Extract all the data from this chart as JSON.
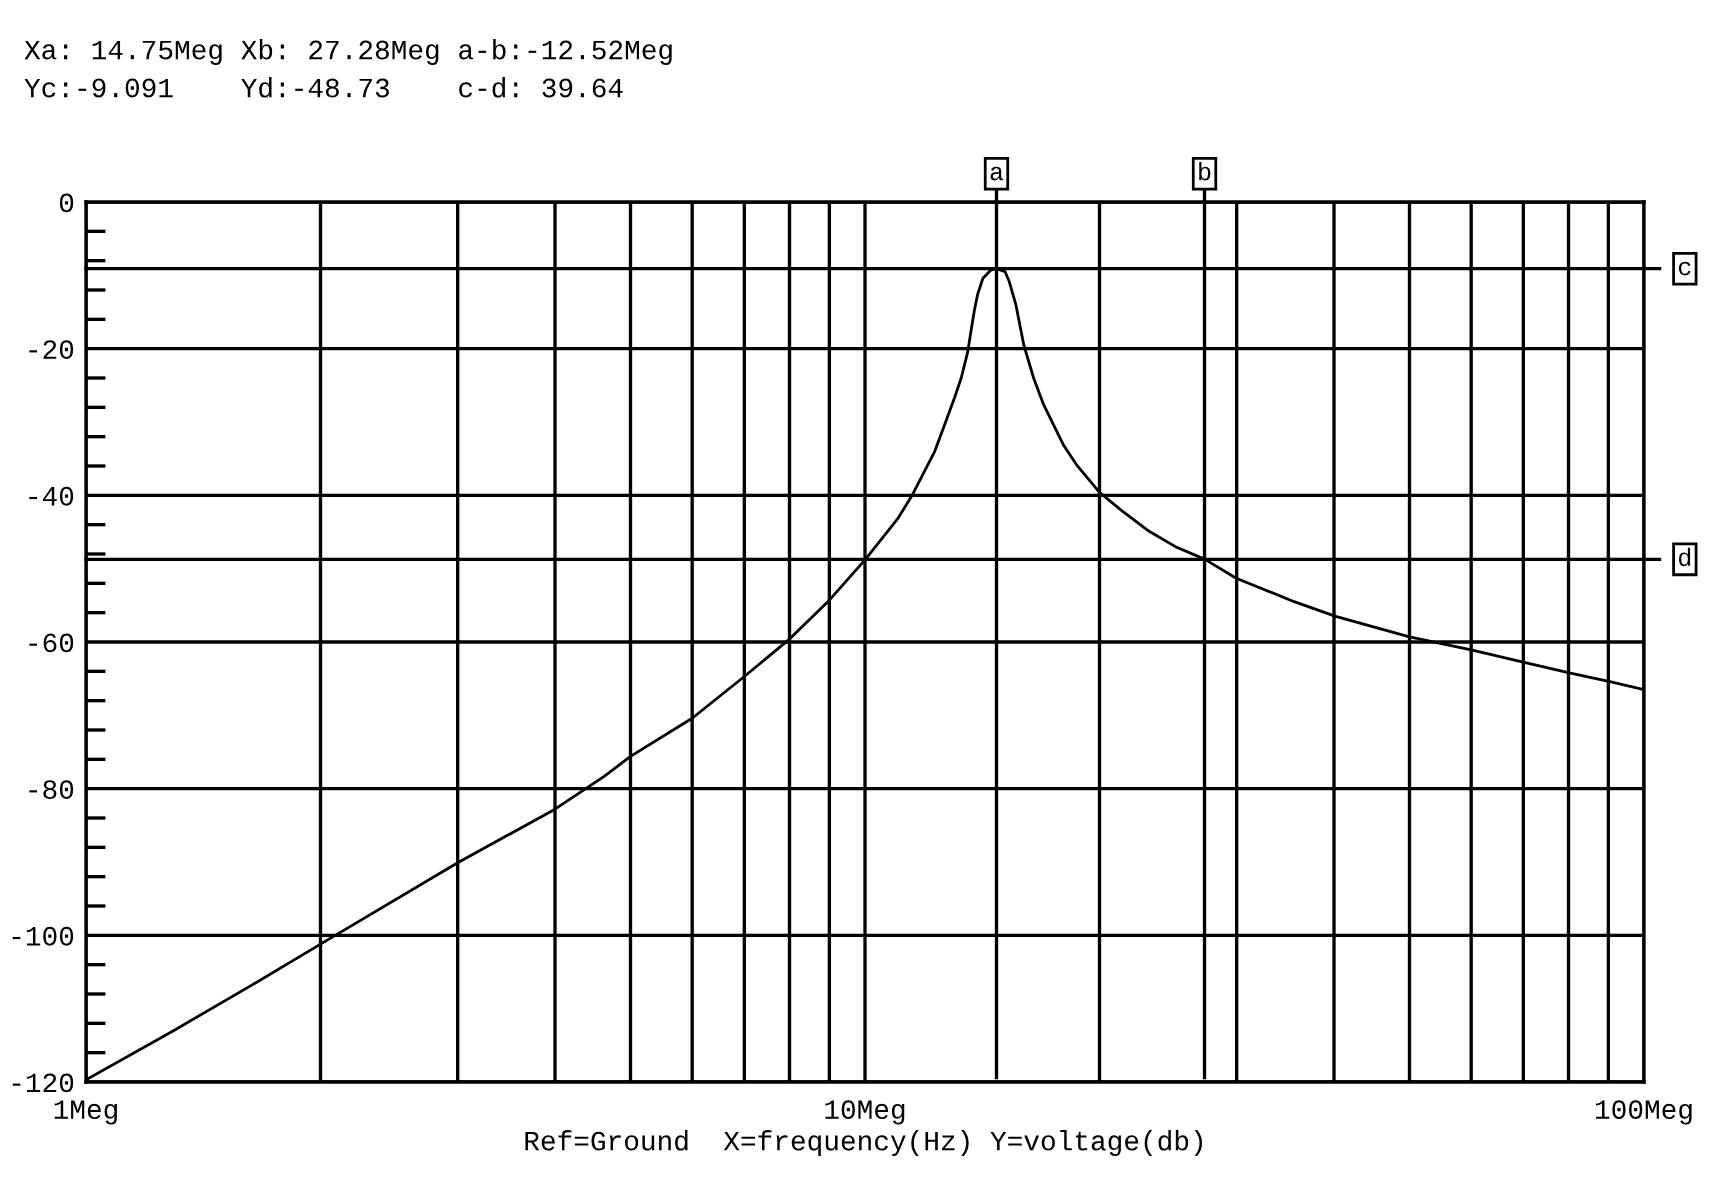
{
  "chart_data": {
    "type": "line",
    "xlabel": "Ref=Ground  X=frequency(Hz) Y=voltage(db)",
    "annotations": [
      "Xa: 14.75Meg Xb: 27.28Meg a-b:-12.52Meg",
      "Yc:-9.091    Yd:-48.73    c-d: 39.64"
    ],
    "x": [
      1,
      1.295,
      1.62,
      2,
      3,
      4,
      4.63,
      5,
      6,
      7,
      8,
      9,
      10,
      11.03,
      11.48,
      12.29,
      12.65,
      13.03,
      13.29,
      13.55,
      13.68,
      13.81,
      13.95,
      14.17,
      14.5,
      14.75,
      15.13,
      15.31,
      15.62,
      15.99,
      16.46,
      16.95,
      17.46,
      17.97,
      18.68,
      20,
      21.42,
      23.16,
      25.03,
      27.28,
      29.96,
      35.56,
      40.2,
      50,
      60.2,
      70.4,
      80.2,
      90.4,
      100
    ],
    "series": [
      {
        "color": "#000000",
        "values": [
          -119.7,
          -113.0,
          -107.0,
          -101.2,
          -90.1,
          -82.8,
          -78.3,
          -75.6,
          -70.4,
          -64.7,
          -59.6,
          -54.3,
          -48.8,
          -43.1,
          -40.1,
          -34.0,
          -30.4,
          -26.7,
          -24.0,
          -20.4,
          -17.6,
          -14.9,
          -12.6,
          -10.4,
          -9.3,
          -9.1,
          -9.5,
          -10.8,
          -14.0,
          -19.5,
          -24.0,
          -27.6,
          -30.4,
          -33.1,
          -35.8,
          -39.6,
          -42.2,
          -44.9,
          -47.0,
          -48.7,
          -51.3,
          -54.5,
          -56.5,
          -59.3,
          -61.1,
          -62.8,
          -64.2,
          -65.4,
          -66.5
        ]
      }
    ],
    "log": "x",
    "xlim": [
      1,
      100
    ],
    "xticks": [
      {
        "value": 1,
        "label": "1Meg"
      },
      {
        "value": 2,
        "label": null
      },
      {
        "value": 3,
        "label": null
      },
      {
        "value": 4,
        "label": null
      },
      {
        "value": 5,
        "label": null
      },
      {
        "value": 6,
        "label": null
      },
      {
        "value": 7,
        "label": null
      },
      {
        "value": 8,
        "label": null
      },
      {
        "value": 9,
        "label": null
      },
      {
        "value": 10,
        "label": "10Meg"
      },
      {
        "value": 20,
        "label": null
      },
      {
        "value": 30,
        "label": null
      },
      {
        "value": 40,
        "label": null
      },
      {
        "value": 50,
        "label": null
      },
      {
        "value": 60,
        "label": null
      },
      {
        "value": 70,
        "label": null
      },
      {
        "value": 80,
        "label": null
      },
      {
        "value": 90,
        "label": null
      },
      {
        "value": 100,
        "label": "100Meg"
      }
    ],
    "ylim": [
      -120,
      0
    ],
    "yticks": [
      -120,
      {
        "value": -116,
        "label": null
      },
      {
        "value": -112,
        "label": null
      },
      {
        "value": -108,
        "label": null
      },
      {
        "value": -104,
        "label": null
      },
      -100,
      {
        "value": -96,
        "label": null
      },
      {
        "value": -92,
        "label": null
      },
      {
        "value": -88,
        "label": null
      },
      {
        "value": -84,
        "label": null
      },
      -80,
      {
        "value": -76,
        "label": null
      },
      {
        "value": -72,
        "label": null
      },
      {
        "value": -68,
        "label": null
      },
      {
        "value": -64,
        "label": null
      },
      -60,
      {
        "value": -56,
        "label": null
      },
      {
        "value": -52,
        "label": null
      },
      {
        "value": -48,
        "label": null
      },
      {
        "value": -44,
        "label": null
      },
      -40,
      {
        "value": -36,
        "label": null
      },
      {
        "value": -32,
        "label": null
      },
      {
        "value": -28,
        "label": null
      },
      {
        "value": -24,
        "label": null
      },
      -20,
      {
        "value": -16,
        "label": null
      },
      {
        "value": -12,
        "label": null
      },
      {
        "value": -8,
        "label": null
      },
      {
        "value": -4,
        "label": null
      },
      0
    ],
    "grid": true,
    "ref_lines": [
      {
        "axis": "x",
        "value": 14.75,
        "label": "a",
        "color": "#000000"
      },
      {
        "axis": "x",
        "value": 27.28,
        "label": "b",
        "color": "#000000"
      },
      {
        "axis": "y",
        "value": -9.091,
        "label": "c",
        "color": "#000000"
      },
      {
        "axis": "y",
        "value": -48.73,
        "label": "d",
        "color": "#000000"
      }
    ]
  }
}
